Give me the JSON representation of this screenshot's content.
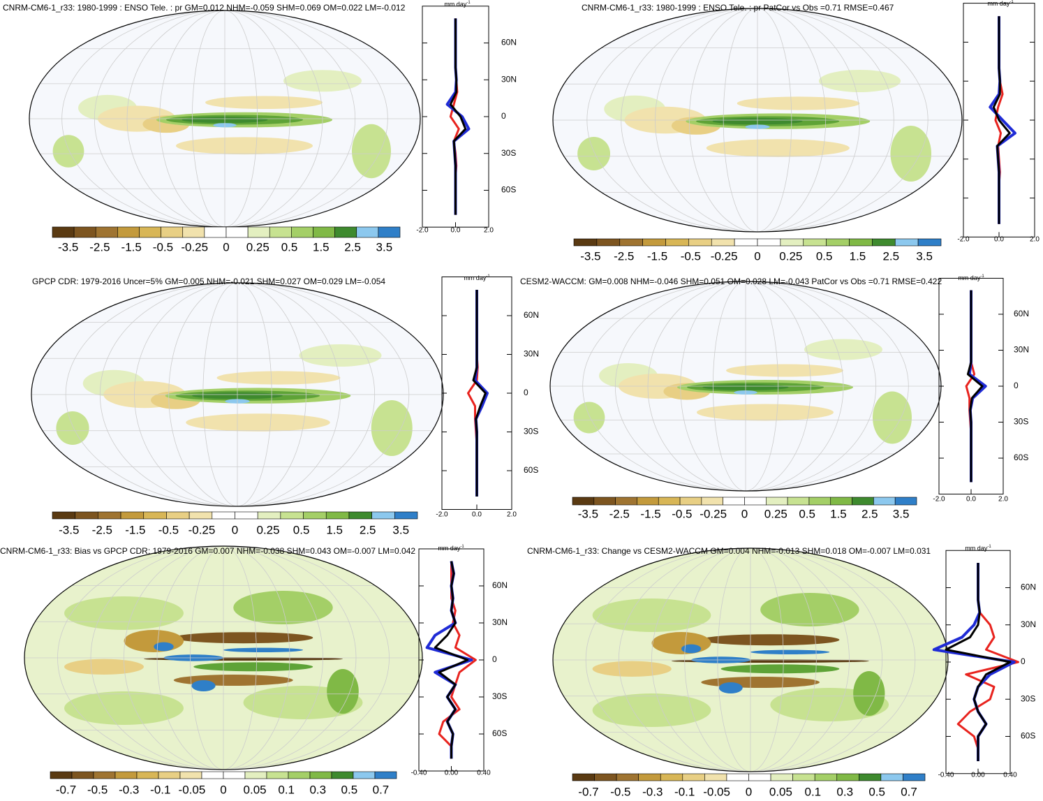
{
  "panels": [
    {
      "title": "CNRM-CM6-1_r33: 1980-1999 : ENSO Tele. : pr GM=0.012 NHM=-0.059 SHM=0.069 OM=0.022 LM=-0.012",
      "colorbar": {
        "labels": [
          -3.5,
          -2.5,
          -1.5,
          -0.5,
          -0.25,
          0,
          0.25,
          0.5,
          1.5,
          2.5,
          3.5
        ],
        "colors": [
          "#5a3a12",
          "#7d5520",
          "#9f7431",
          "#c39a3c",
          "#d8b656",
          "#e8cf84",
          "#f1e2ad",
          "#ffffff",
          "#ffffff",
          "#e3efc0",
          "#c7e291",
          "#a4cf67",
          "#80b946",
          "#3e8a2e",
          "#8cc8ee",
          "#2f7fc8"
        ]
      },
      "zonal_mean": {
        "type": "line",
        "units": "mm day",
        "units_exp": "-1",
        "xlim": [
          -2,
          2
        ],
        "xticks": [
          {
            "value": -2,
            "label": "-2.0"
          },
          {
            "value": 0,
            "label": "0.0"
          },
          {
            "value": 2,
            "label": "2.0"
          }
        ],
        "ylim": [
          -90,
          90
        ],
        "yticks": [
          {
            "value": -60,
            "label": "60S"
          },
          {
            "value": -30,
            "label": "30S"
          },
          0,
          {
            "value": 30,
            "label": "30N"
          },
          {
            "value": 60,
            "label": "60N"
          }
        ],
        "show_ytick_labels": true,
        "lat": [
          -80,
          -70,
          -60,
          -50,
          -40,
          -30,
          -20,
          -10,
          0,
          10,
          20,
          30,
          40,
          50,
          60,
          70,
          80
        ],
        "series": [
          {
            "color": "#e8231e",
            "values": [
              0,
              0,
              0,
              0,
              0.05,
              0,
              -0.1,
              0.2,
              -0.3,
              -0.1,
              0.1,
              0.05,
              0,
              0,
              0,
              0,
              0
            ]
          },
          {
            "color": "#1f2bd6",
            "values": [
              0,
              0,
              0,
              0,
              0,
              -0.05,
              -0.1,
              0.8,
              0.4,
              -0.5,
              0,
              0.05,
              0,
              0,
              0,
              0,
              0
            ]
          },
          {
            "color": "#000000",
            "values": [
              0,
              0,
              0,
              0,
              0,
              -0.05,
              -0.1,
              0.6,
              0.3,
              -0.3,
              0.05,
              0.05,
              0,
              0,
              0,
              0,
              0
            ]
          }
        ]
      }
    },
    {
      "title": "CNRM-CM6-1_r33: 1980-1999 : ENSO Tele. : pr PatCor vs Obs =0.71 RMSE=0.467",
      "colorbar": {
        "labels": [
          -3.5,
          -2.5,
          -1.5,
          -0.5,
          -0.25,
          0,
          0.25,
          0.5,
          1.5,
          2.5,
          3.5
        ],
        "colors": [
          "#5a3a12",
          "#7d5520",
          "#9f7431",
          "#c39a3c",
          "#d8b656",
          "#e8cf84",
          "#f1e2ad",
          "#ffffff",
          "#ffffff",
          "#e3efc0",
          "#c7e291",
          "#a4cf67",
          "#80b946",
          "#3e8a2e",
          "#8cc8ee",
          "#2f7fc8"
        ]
      },
      "zonal_mean": {
        "type": "line",
        "units": "mm day",
        "units_exp": "-1",
        "xlim": [
          -2,
          2
        ],
        "xticks": [
          {
            "value": -2,
            "label": "-2.0"
          },
          {
            "value": 0,
            "label": "0.0"
          },
          {
            "value": 2,
            "label": "2.0"
          }
        ],
        "ylim": [
          -90,
          90
        ],
        "yticks": [
          -60,
          -30,
          0,
          30,
          60
        ],
        "show_ytick_labels": false,
        "lat": [
          -80,
          -70,
          -60,
          -50,
          -40,
          -30,
          -20,
          -10,
          0,
          10,
          20,
          30,
          40,
          50,
          60,
          70,
          80
        ],
        "series": [
          {
            "color": "#e8231e",
            "values": [
              0,
              0,
              0,
              0,
              0.05,
              0,
              -0.05,
              0.1,
              -0.2,
              -0.05,
              0.2,
              0.05,
              0,
              0,
              0,
              0,
              0
            ]
          },
          {
            "color": "#1f2bd6",
            "values": [
              0,
              0,
              0,
              0,
              0,
              -0.05,
              -0.1,
              0.9,
              0.2,
              -0.5,
              0,
              0.05,
              0,
              0,
              0,
              0,
              0
            ]
          },
          {
            "color": "#000000",
            "values": [
              0,
              0,
              0,
              0,
              0,
              -0.05,
              -0.1,
              0.6,
              0,
              -0.3,
              0.05,
              0.05,
              0,
              0,
              0,
              0,
              0
            ]
          }
        ]
      }
    },
    {
      "title": "GPCP CDR: 1979-2016 Uncer=5% GM=0.005 NHM=-0.021 SHM=0.027 OM=0.029 LM=-0.054",
      "colorbar": {
        "labels": [
          -3.5,
          -2.5,
          -1.5,
          -0.5,
          -0.25,
          0,
          0.25,
          0.5,
          1.5,
          2.5,
          3.5
        ],
        "colors": [
          "#5a3a12",
          "#7d5520",
          "#9f7431",
          "#c39a3c",
          "#d8b656",
          "#e8cf84",
          "#f1e2ad",
          "#ffffff",
          "#ffffff",
          "#e3efc0",
          "#c7e291",
          "#a4cf67",
          "#80b946",
          "#3e8a2e",
          "#8cc8ee",
          "#2f7fc8"
        ]
      },
      "zonal_mean": {
        "type": "line",
        "units": "mm day",
        "units_exp": "-1",
        "xlim": [
          -2,
          2
        ],
        "xticks": [
          {
            "value": -2,
            "label": "-2.0"
          },
          {
            "value": 0,
            "label": "0.0"
          },
          {
            "value": 2,
            "label": "2.0"
          }
        ],
        "ylim": [
          -90,
          90
        ],
        "yticks": [
          {
            "value": -60,
            "label": "60S"
          },
          {
            "value": -30,
            "label": "30S"
          },
          0,
          {
            "value": 30,
            "label": "30N"
          },
          {
            "value": 60,
            "label": "60N"
          }
        ],
        "show_ytick_labels": true,
        "lat": [
          -80,
          -70,
          -60,
          -50,
          -40,
          -30,
          -20,
          -10,
          0,
          10,
          20,
          30,
          40,
          50,
          60,
          70,
          80
        ],
        "series": [
          {
            "color": "#e8231e",
            "values": [
              0,
              0,
              0,
              0,
              0,
              -0.05,
              -0.1,
              -0.1,
              -0.5,
              0,
              0.05,
              0,
              0,
              0,
              0,
              0,
              0
            ]
          },
          {
            "color": "#1f2bd6",
            "values": [
              0,
              0,
              0,
              0,
              0,
              0,
              -0.05,
              0.3,
              0.6,
              -0.1,
              0,
              0,
              0,
              0,
              0,
              0,
              0
            ]
          },
          {
            "color": "#000000",
            "values": [
              0,
              0,
              0,
              0,
              0,
              0,
              -0.05,
              0.2,
              0.5,
              -0.2,
              0,
              0,
              0,
              0,
              0,
              0,
              0
            ]
          }
        ]
      }
    },
    {
      "title": "CESM2-WACCM: GM=0.008 NHM=-0.046 SHM=0.051 OM=0.028 LM=-0.043 PatCor vs Obs =0.71 RMSE=0.422",
      "colorbar": {
        "labels": [
          -3.5,
          -2.5,
          -1.5,
          -0.5,
          -0.25,
          0,
          0.25,
          0.5,
          1.5,
          2.5,
          3.5
        ],
        "colors": [
          "#5a3a12",
          "#7d5520",
          "#9f7431",
          "#c39a3c",
          "#d8b656",
          "#e8cf84",
          "#f1e2ad",
          "#ffffff",
          "#ffffff",
          "#e3efc0",
          "#c7e291",
          "#a4cf67",
          "#80b946",
          "#3e8a2e",
          "#8cc8ee",
          "#2f7fc8"
        ]
      },
      "zonal_mean": {
        "type": "line",
        "units": "mm day",
        "units_exp": "-1",
        "xlim": [
          -2,
          2
        ],
        "xticks": [
          {
            "value": -2,
            "label": "-2.0"
          },
          {
            "value": 0,
            "label": "0.0"
          },
          {
            "value": 2,
            "label": "2.0"
          }
        ],
        "ylim": [
          -90,
          90
        ],
        "yticks": [
          {
            "value": -60,
            "label": "60S"
          },
          {
            "value": -30,
            "label": "30S"
          },
          0,
          {
            "value": 30,
            "label": "30N"
          },
          {
            "value": 60,
            "label": "60N"
          }
        ],
        "show_ytick_labels": true,
        "lat": [
          -80,
          -70,
          -60,
          -50,
          -40,
          -30,
          -20,
          -10,
          0,
          10,
          20,
          30,
          40,
          50,
          60,
          70,
          80
        ],
        "series": [
          {
            "color": "#e8231e",
            "values": [
              0,
              0,
              0,
              0,
              0,
              -0.05,
              -0.1,
              -0.1,
              -0.3,
              0.2,
              0,
              0,
              0,
              0,
              0,
              0,
              0
            ]
          },
          {
            "color": "#1f2bd6",
            "values": [
              0,
              0,
              0,
              0,
              0,
              0,
              -0.05,
              0.1,
              0.9,
              -0.1,
              0,
              0,
              0,
              0,
              0,
              0,
              0
            ]
          },
          {
            "color": "#000000",
            "values": [
              0,
              0,
              0,
              0,
              0,
              0,
              -0.05,
              0.05,
              0.7,
              -0.2,
              0,
              0,
              0,
              0,
              0,
              0,
              0
            ]
          }
        ]
      }
    },
    {
      "title": "CNRM-CM6-1_r33: Bias vs GPCP CDR: 1979-2016 GM=0.007 NHM=-0.038 SHM=0.043 OM=-0.007 LM=0.042",
      "colorbar": {
        "labels": [
          -0.7,
          -0.5,
          -0.3,
          -0.1,
          -0.05,
          0,
          0.05,
          0.1,
          0.3,
          0.5,
          0.7
        ],
        "colors": [
          "#5a3a12",
          "#7d5520",
          "#9f7431",
          "#c39a3c",
          "#d8b656",
          "#e8cf84",
          "#f1e2ad",
          "#ffffff",
          "#ffffff",
          "#e3efc0",
          "#c7e291",
          "#a4cf67",
          "#80b946",
          "#3e8a2e",
          "#8cc8ee",
          "#2f7fc8"
        ]
      },
      "zonal_mean": {
        "type": "line",
        "units": "mm day",
        "units_exp": "-1",
        "xlim": [
          -0.4,
          0.4
        ],
        "xticks": [
          {
            "value": -0.4,
            "label": "-0.40"
          },
          {
            "value": 0,
            "label": "0.00"
          },
          {
            "value": 0.4,
            "label": "0.40"
          }
        ],
        "ylim": [
          -90,
          90
        ],
        "yticks": [
          {
            "value": -60,
            "label": "60S"
          },
          {
            "value": -30,
            "label": "30S"
          },
          0,
          {
            "value": 30,
            "label": "30N"
          },
          {
            "value": 60,
            "label": "60N"
          }
        ],
        "show_ytick_labels": true,
        "lat": [
          -80,
          -70,
          -60,
          -50,
          -40,
          -30,
          -20,
          -10,
          0,
          10,
          20,
          30,
          40,
          50,
          60,
          70,
          80
        ],
        "series": [
          {
            "color": "#e8231e",
            "values": [
              0,
              0,
              -0.15,
              -0.1,
              0.1,
              0,
              0.05,
              0.1,
              0.3,
              0.05,
              0.1,
              0.02,
              0.05,
              0,
              0,
              0,
              0
            ]
          },
          {
            "color": "#1f2bd6",
            "values": [
              0,
              0,
              0.02,
              -0.05,
              0.05,
              -0.05,
              0.05,
              -0.2,
              0.25,
              -0.3,
              -0.2,
              0.05,
              0,
              0.02,
              0,
              0.03,
              0
            ]
          },
          {
            "color": "#000000",
            "values": [
              0,
              0,
              0.02,
              -0.05,
              0.05,
              -0.05,
              0.05,
              -0.15,
              0.2,
              -0.2,
              -0.05,
              0.05,
              0,
              0.02,
              0,
              0.03,
              0
            ]
          }
        ]
      }
    },
    {
      "title": "CNRM-CM6-1_r33: Change vs CESM2-WACCM GM=0.004 NHM=-0.013 SHM=0.018 OM=-0.007 LM=0.031",
      "colorbar": {
        "labels": [
          -0.7,
          -0.5,
          -0.3,
          -0.1,
          -0.05,
          0,
          0.05,
          0.1,
          0.3,
          0.5,
          0.7
        ],
        "colors": [
          "#5a3a12",
          "#7d5520",
          "#9f7431",
          "#c39a3c",
          "#d8b656",
          "#e8cf84",
          "#f1e2ad",
          "#ffffff",
          "#ffffff",
          "#e3efc0",
          "#c7e291",
          "#a4cf67",
          "#80b946",
          "#3e8a2e",
          "#8cc8ee",
          "#2f7fc8"
        ]
      },
      "zonal_mean": {
        "type": "line",
        "units": "mm day",
        "units_exp": "-1",
        "xlim": [
          -0.4,
          0.4
        ],
        "xticks": [
          {
            "value": -0.4,
            "label": "-0.40"
          },
          {
            "value": 0,
            "label": "0.00"
          },
          {
            "value": 0.4,
            "label": "0.40"
          }
        ],
        "ylim": [
          -90,
          90
        ],
        "yticks": [
          {
            "value": -60,
            "label": "60S"
          },
          {
            "value": -30,
            "label": "30S"
          },
          0,
          {
            "value": 30,
            "label": "30N"
          },
          {
            "value": 60,
            "label": "60N"
          }
        ],
        "show_ytick_labels": true,
        "lat": [
          -80,
          -70,
          -60,
          -50,
          -40,
          -30,
          -20,
          -10,
          0,
          10,
          20,
          30,
          40,
          50,
          60,
          70,
          80
        ],
        "series": [
          {
            "color": "#e8231e",
            "values": [
              0,
              0,
              -0.05,
              -0.25,
              -0.1,
              0.15,
              0.2,
              -0.15,
              0.5,
              0.1,
              0.2,
              0.15,
              0.02,
              0,
              0,
              0,
              0
            ]
          },
          {
            "color": "#1f2bd6",
            "values": [
              0,
              0,
              0,
              0.1,
              0,
              -0.05,
              0,
              0.15,
              0.45,
              -0.55,
              -0.2,
              -0.05,
              0.02,
              0,
              0,
              0,
              0
            ]
          },
          {
            "color": "#000000",
            "values": [
              0,
              0,
              0,
              0.1,
              0,
              -0.05,
              0,
              0.1,
              0.4,
              -0.4,
              -0.1,
              0,
              0.02,
              0,
              0,
              0,
              0
            ]
          }
        ]
      }
    }
  ]
}
